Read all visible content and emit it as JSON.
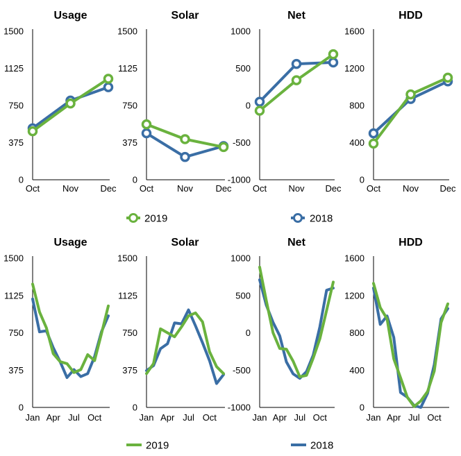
{
  "colors": {
    "series_2019": "#6ab23e",
    "series_2018": "#3a6ea5",
    "axis": "#000000"
  },
  "legend_top": [
    {
      "name": "2019",
      "marker": "circle-line"
    },
    {
      "name": "2018",
      "marker": "circle-line"
    }
  ],
  "legend_bottom": [
    {
      "name": "2019",
      "marker": "line"
    },
    {
      "name": "2018",
      "marker": "line"
    }
  ],
  "chart_data": [
    {
      "id": "q4-usage",
      "type": "line",
      "title": "Usage",
      "categories": [
        "Oct",
        "Nov",
        "Dec"
      ],
      "ylim": [
        0,
        1500
      ],
      "yticks": [
        "0",
        "375",
        "750",
        "1125",
        "1500"
      ],
      "markers": true,
      "series": [
        {
          "name": "2019",
          "values": [
            490,
            770,
            1020
          ]
        },
        {
          "name": "2018",
          "values": [
            520,
            800,
            935
          ]
        }
      ]
    },
    {
      "id": "q4-solar",
      "type": "line",
      "title": "Solar",
      "categories": [
        "Oct",
        "Nov",
        "Dec"
      ],
      "ylim": [
        0,
        1500
      ],
      "yticks": [
        "0",
        "375",
        "750",
        "1125",
        "1500"
      ],
      "markers": true,
      "series": [
        {
          "name": "2019",
          "values": [
            560,
            410,
            330
          ]
        },
        {
          "name": "2018",
          "values": [
            470,
            230,
            340
          ]
        }
      ]
    },
    {
      "id": "q4-net",
      "type": "line",
      "title": "Net",
      "categories": [
        "Oct",
        "Nov",
        "Dec"
      ],
      "ylim": [
        -1000,
        1000
      ],
      "yticks": [
        "-1000",
        "-500",
        "0",
        "500",
        "1000"
      ],
      "markers": true,
      "series": [
        {
          "name": "2019",
          "values": [
            -70,
            340,
            690
          ]
        },
        {
          "name": "2018",
          "values": [
            50,
            560,
            580
          ]
        }
      ]
    },
    {
      "id": "q4-hdd",
      "type": "line",
      "title": "HDD",
      "categories": [
        "Oct",
        "Nov",
        "Dec"
      ],
      "ylim": [
        0,
        1600
      ],
      "yticks": [
        "0",
        "400",
        "800",
        "1200",
        "1600"
      ],
      "markers": true,
      "series": [
        {
          "name": "2019",
          "values": [
            390,
            920,
            1100
          ]
        },
        {
          "name": "2018",
          "values": [
            500,
            870,
            1060
          ]
        }
      ]
    },
    {
      "id": "yr-usage",
      "type": "line",
      "title": "Usage",
      "categories": [
        "Jan",
        "Feb",
        "Mar",
        "Apr",
        "May",
        "Jun",
        "Jul",
        "Aug",
        "Sep",
        "Oct",
        "Nov",
        "Dec"
      ],
      "xticks": [
        "Jan",
        "Apr",
        "Jul",
        "Oct"
      ],
      "ylim": [
        0,
        1500
      ],
      "yticks": [
        "0",
        "375",
        "750",
        "1125",
        "1500"
      ],
      "markers": false,
      "series": [
        {
          "name": "2019",
          "values": [
            1240,
            960,
            800,
            540,
            460,
            440,
            350,
            380,
            530,
            470,
            740,
            1020
          ]
        },
        {
          "name": "2018",
          "values": [
            1090,
            760,
            770,
            600,
            460,
            300,
            380,
            310,
            340,
            510,
            760,
            920
          ]
        }
      ]
    },
    {
      "id": "yr-solar",
      "type": "line",
      "title": "Solar",
      "categories": [
        "Jan",
        "Feb",
        "Mar",
        "Apr",
        "May",
        "Jun",
        "Jul",
        "Aug",
        "Sep",
        "Oct",
        "Nov",
        "Dec"
      ],
      "xticks": [
        "Jan",
        "Apr",
        "Jul",
        "Oct"
      ],
      "ylim": [
        0,
        1500
      ],
      "yticks": [
        "0",
        "375",
        "750",
        "1125",
        "1500"
      ],
      "markers": false,
      "series": [
        {
          "name": "2019",
          "values": [
            340,
            440,
            790,
            750,
            710,
            810,
            920,
            950,
            860,
            560,
            410,
            340
          ]
        },
        {
          "name": "2018",
          "values": [
            370,
            420,
            590,
            640,
            850,
            840,
            980,
            820,
            650,
            470,
            240,
            330
          ]
        }
      ]
    },
    {
      "id": "yr-net",
      "type": "line",
      "title": "Net",
      "categories": [
        "Jan",
        "Feb",
        "Mar",
        "Apr",
        "May",
        "Jun",
        "Jul",
        "Aug",
        "Sep",
        "Oct",
        "Nov",
        "Dec"
      ],
      "xticks": [
        "Jan",
        "Apr",
        "Jul",
        "Oct"
      ],
      "ylim": [
        -1000,
        1000
      ],
      "yticks": [
        "-1000",
        "-500",
        "0",
        "500",
        "1000"
      ],
      "markers": false,
      "series": [
        {
          "name": "2019",
          "values": [
            880,
            430,
            0,
            -210,
            -220,
            -380,
            -590,
            -570,
            -340,
            -80,
            300,
            680
          ]
        },
        {
          "name": "2018",
          "values": [
            710,
            370,
            140,
            -40,
            -390,
            -550,
            -610,
            -520,
            -300,
            80,
            570,
            600
          ]
        }
      ]
    },
    {
      "id": "yr-hdd",
      "type": "line",
      "title": "HDD",
      "categories": [
        "Jan",
        "Feb",
        "Mar",
        "Apr",
        "May",
        "Jun",
        "Jul",
        "Aug",
        "Sep",
        "Oct",
        "Nov",
        "Dec"
      ],
      "xticks": [
        "Jan",
        "Apr",
        "Jul",
        "Oct"
      ],
      "ylim": [
        0,
        1600
      ],
      "yticks": [
        "0",
        "400",
        "800",
        "1200",
        "1600"
      ],
      "markers": false,
      "series": [
        {
          "name": "2019",
          "values": [
            1330,
            1070,
            950,
            520,
            320,
            110,
            10,
            70,
            170,
            390,
            910,
            1110
          ]
        },
        {
          "name": "2018",
          "values": [
            1280,
            890,
            980,
            750,
            160,
            110,
            20,
            0,
            150,
            460,
            950,
            1060
          ]
        }
      ]
    }
  ]
}
